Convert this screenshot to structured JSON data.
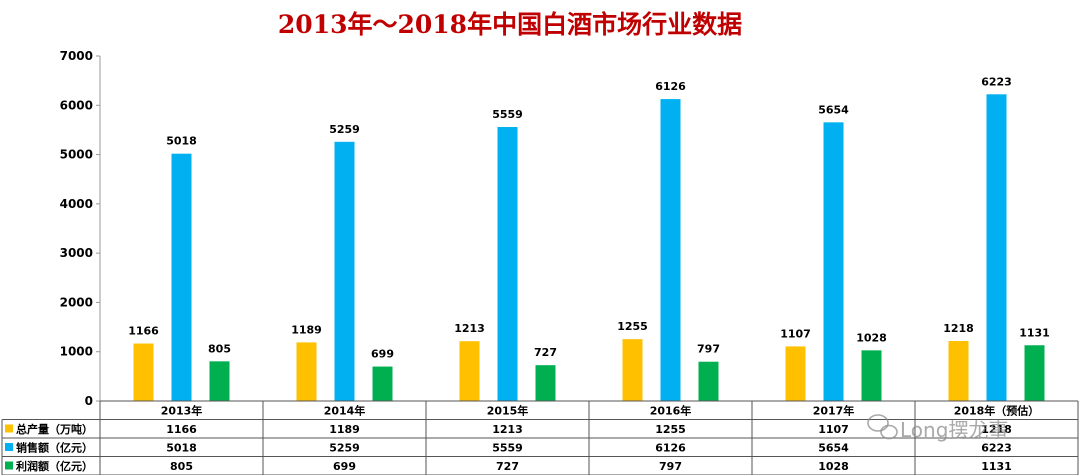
{
  "chart_data": {
    "type": "bar",
    "title": "2013年～2018年中国白酒市场行业数据",
    "categories": [
      "2013年",
      "2014年",
      "2015年",
      "2016年",
      "2017年",
      "2018年（预估）"
    ],
    "series": [
      {
        "name": "总产量（万吨）",
        "color": "#ffc000",
        "values": [
          1166,
          1189,
          1213,
          1255,
          1107,
          1218
        ]
      },
      {
        "name": "销售额（亿元）",
        "color": "#00b0f0",
        "values": [
          5018,
          5259,
          5559,
          6126,
          5654,
          6223
        ]
      },
      {
        "name": "利润额（亿元）",
        "color": "#00b050",
        "values": [
          805,
          699,
          727,
          797,
          1028,
          1131
        ]
      }
    ],
    "ylim": [
      0,
      7000
    ],
    "yticks": [
      0,
      1000,
      2000,
      3000,
      4000,
      5000,
      6000,
      7000
    ],
    "grid": false,
    "legend": "data table below chart",
    "title_color": "#c00000"
  },
  "watermark": "Long摆龙事"
}
